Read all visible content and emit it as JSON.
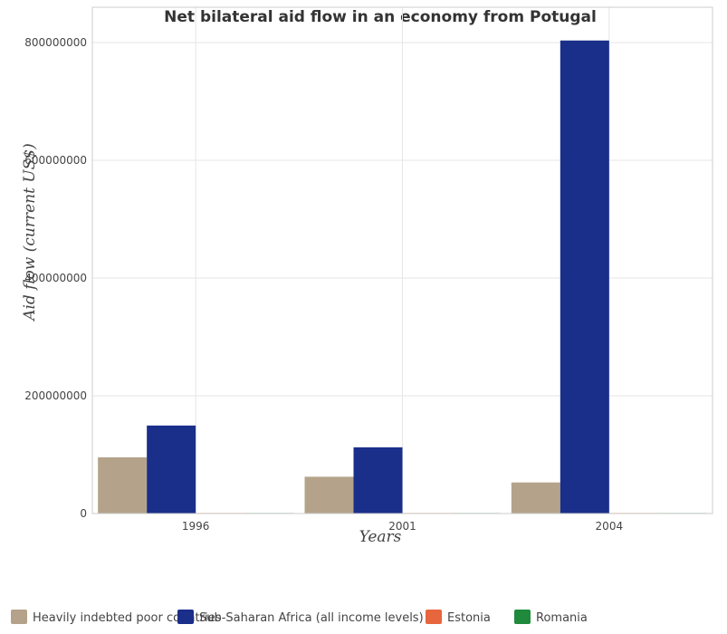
{
  "chart_data": {
    "type": "bar",
    "title": "Net bilateral aid flow in an economy from Potugal",
    "xlabel": "Years",
    "ylabel": "Aid flow (current US$)",
    "categories": [
      "1996",
      "2001",
      "2004"
    ],
    "ylim": [
      0,
      860000000
    ],
    "yticks": [
      0,
      200000000,
      400000000,
      600000000,
      800000000
    ],
    "ytick_labels": [
      "0",
      "200000000",
      "400000000",
      "600000000",
      "800000000"
    ],
    "grid": true,
    "legend_position": "bottom",
    "series": [
      {
        "name": "Heavily indebted poor countries",
        "color": "#b4a38a",
        "values": [
          95500000,
          62500000,
          52800000
        ]
      },
      {
        "name": "Sub-Saharan Africa (all income levels)",
        "color": "#1a2f8a",
        "values": [
          149500000,
          112500000,
          803500000
        ]
      },
      {
        "name": "Estonia",
        "color": "#e8663d",
        "values": [
          40000,
          30000,
          100000
        ]
      },
      {
        "name": "Romania",
        "color": "#1f8a3c",
        "values": [
          60000,
          20000,
          30000
        ]
      }
    ]
  }
}
